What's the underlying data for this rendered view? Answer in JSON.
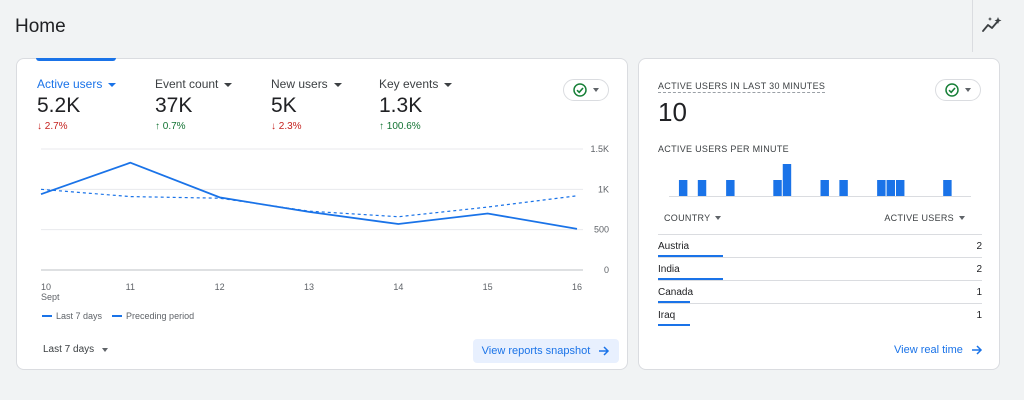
{
  "header": {
    "title": "Home",
    "insights_icon": "insights-sparkle-icon"
  },
  "colors": {
    "accent": "#1a73e8",
    "down": "#c5221f",
    "up": "#137333",
    "check": "#188038"
  },
  "overview": {
    "metrics": [
      {
        "label": "Active users",
        "value": "5.2K",
        "change": "2.7%",
        "direction": "down"
      },
      {
        "label": "Event count",
        "value": "37K",
        "change": "0.7%",
        "direction": "up"
      },
      {
        "label": "New users",
        "value": "5K",
        "change": "2.3%",
        "direction": "down"
      },
      {
        "label": "Key events",
        "value": "1.3K",
        "change": "100.6%",
        "direction": "up"
      }
    ],
    "status_icon": "check-circle-icon",
    "range_label": "Last 7 days",
    "cta_label": "View reports snapshot"
  },
  "chart_data": {
    "type": "line",
    "x": [
      "10",
      "11",
      "12",
      "13",
      "14",
      "15",
      "16"
    ],
    "x_sublabel": "Sept",
    "yticks": [
      "0",
      "500",
      "1K",
      "1.5K"
    ],
    "ylim": [
      0,
      1500
    ],
    "grid": true,
    "legend_position": "bottom-left",
    "series": [
      {
        "name": "Last 7 days",
        "style": "solid",
        "values": [
          940,
          1330,
          900,
          720,
          570,
          700,
          510
        ]
      },
      {
        "name": "Preceding period",
        "style": "dashed",
        "values": [
          1000,
          910,
          890,
          730,
          660,
          780,
          920
        ]
      }
    ]
  },
  "realtime": {
    "title": "ACTIVE USERS IN LAST 30 MINUTES",
    "value": "10",
    "subtitle": "ACTIVE USERS PER MINUTE",
    "per_minute": [
      0,
      1,
      0,
      1,
      0,
      0,
      1,
      0,
      0,
      0,
      0,
      1,
      2,
      0,
      0,
      0,
      1,
      0,
      1,
      0,
      0,
      0,
      1,
      1,
      1,
      0,
      0,
      0,
      0,
      1,
      0,
      0
    ],
    "col_country": "COUNTRY",
    "col_users": "ACTIVE USERS",
    "rows": [
      {
        "country": "Austria",
        "count": "2",
        "share": 0.2
      },
      {
        "country": "India",
        "count": "2",
        "share": 0.2
      },
      {
        "country": "Canada",
        "count": "1",
        "share": 0.1
      },
      {
        "country": "Iraq",
        "count": "1",
        "share": 0.1
      }
    ],
    "cta_label": "View real time"
  }
}
